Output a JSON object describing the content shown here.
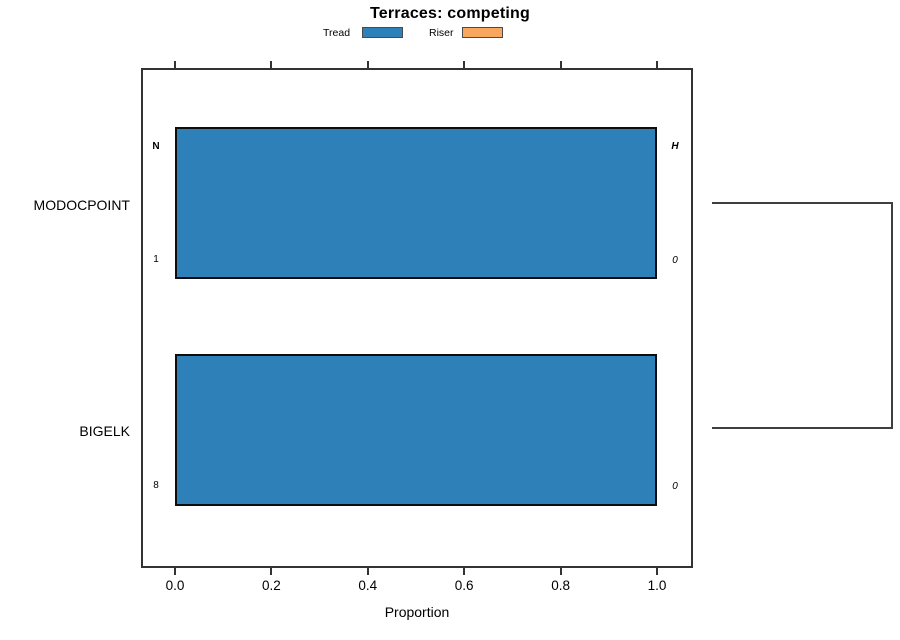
{
  "title": "Terraces: competing",
  "legend": {
    "items": [
      {
        "label": "Tread",
        "color": "#2e80b9"
      },
      {
        "label": "Riser",
        "color": "#f9a75f"
      }
    ]
  },
  "axes": {
    "xlabel": "Proportion",
    "xticks": [
      "0.0",
      "0.2",
      "0.4",
      "0.6",
      "0.8",
      "1.0"
    ]
  },
  "chart_data": {
    "type": "bar",
    "orientation": "horizontal",
    "title": "Terraces: competing",
    "xlabel": "Proportion",
    "ylabel": "",
    "xlim": [
      0,
      1
    ],
    "xticks": [
      0.0,
      0.2,
      0.4,
      0.6,
      0.8,
      1.0
    ],
    "grid": false,
    "legend_position": "top",
    "categories": [
      "MODOCPOINT",
      "BIGELK"
    ],
    "series": [
      {
        "name": "Tread",
        "color": "#2e80b9",
        "values": [
          1.0,
          1.0
        ]
      },
      {
        "name": "Riser",
        "color": "#f9a75f",
        "values": [
          0.0,
          0.0
        ]
      }
    ],
    "bars": [
      {
        "category": "MODOCPOINT",
        "value": 1.0,
        "fill_series": "Tread",
        "labels": {
          "left_top": "N",
          "left_bottom": "1",
          "right_top": "H",
          "right_bottom": "0"
        }
      },
      {
        "category": "BIGELK",
        "value": 1.0,
        "fill_series": "Tread",
        "labels": {
          "left_bottom": "8",
          "right_bottom": "0"
        }
      }
    ],
    "annotations": {
      "right_bracket_connects": [
        "MODOCPOINT",
        "BIGELK"
      ]
    }
  },
  "colors": {
    "bar_fill": "#2e80b9",
    "bar_border": "#0d0d0d",
    "frame": "#333333"
  }
}
